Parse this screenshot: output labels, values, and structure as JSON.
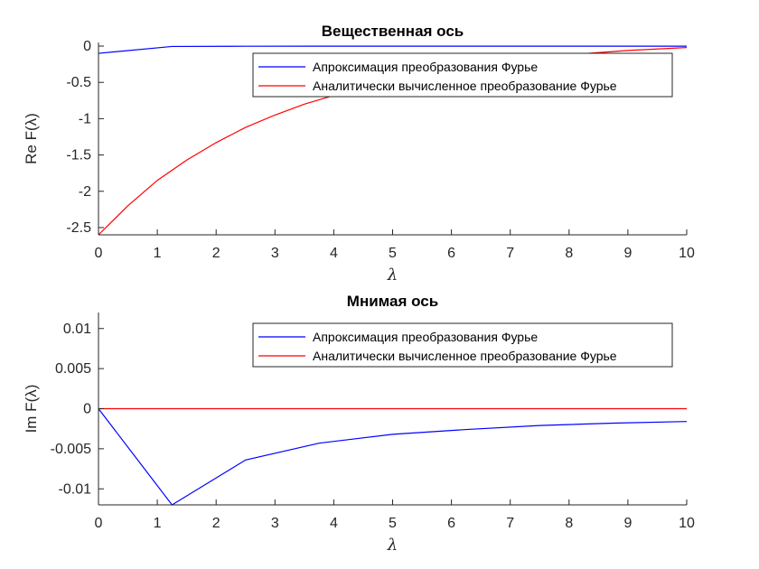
{
  "chart_data": [
    {
      "type": "line",
      "title": "Вещественная ось",
      "xlabel": "λ",
      "ylabel": "Re F(λ)",
      "xlim": [
        0,
        10
      ],
      "ylim": [
        -2.6,
        0.05
      ],
      "xticks": [
        0,
        1,
        2,
        3,
        4,
        5,
        6,
        7,
        8,
        9,
        10
      ],
      "xtick_labels": [
        "0",
        "1",
        "2",
        "3",
        "4",
        "5",
        "6",
        "7",
        "8",
        "9",
        "10"
      ],
      "yticks": [
        0,
        -0.5,
        -1,
        -1.5,
        -2,
        -2.5
      ],
      "ytick_labels": [
        "0",
        "-0.5",
        "-1",
        "-1.5",
        "-2",
        "-2.5"
      ],
      "grid": false,
      "legend_position": "top-right",
      "series": [
        {
          "name": "Апроксимация преобразования Фурье",
          "color": "#0000ff",
          "x": [
            0,
            1.25,
            2.5,
            3.75,
            5,
            6.25,
            7.5,
            8.75,
            10
          ],
          "y": [
            -0.1,
            -0.005,
            -0.002,
            -0.001,
            -0.001,
            -0.001,
            -0.001,
            -0.001,
            -0.001
          ]
        },
        {
          "name": "Аналитически вычисленное преобразование Фурье",
          "color": "#ff0000",
          "x": [
            0,
            0.5,
            1,
            1.5,
            2,
            2.5,
            3,
            3.5,
            4,
            4.5,
            5,
            5.5,
            6,
            6.5,
            7,
            7.5,
            8,
            8.5,
            9,
            9.5,
            10
          ],
          "y": [
            -2.6,
            -2.2,
            -1.85,
            -1.57,
            -1.33,
            -1.12,
            -0.95,
            -0.8,
            -0.68,
            -0.58,
            -0.5,
            -0.42,
            -0.35,
            -0.28,
            -0.22,
            -0.17,
            -0.12,
            -0.09,
            -0.06,
            -0.04,
            -0.02
          ]
        }
      ]
    },
    {
      "type": "line",
      "title": "Мнимая ось",
      "xlabel": "λ",
      "ylabel": "Im F(λ)",
      "xlim": [
        0,
        10
      ],
      "ylim": [
        -0.012,
        0.012
      ],
      "xticks": [
        0,
        1,
        2,
        3,
        4,
        5,
        6,
        7,
        8,
        9,
        10
      ],
      "xtick_labels": [
        "0",
        "1",
        "2",
        "3",
        "4",
        "5",
        "6",
        "7",
        "8",
        "9",
        "10"
      ],
      "yticks": [
        0.01,
        0.005,
        0,
        -0.005,
        -0.01
      ],
      "ytick_labels": [
        "0.01",
        "0.005",
        "0",
        "-0.005",
        "-0.01"
      ],
      "grid": false,
      "legend_position": "top-right",
      "series": [
        {
          "name": "Апроксимация преобразования Фурье",
          "color": "#0000ff",
          "x": [
            0,
            1.25,
            2.5,
            3.75,
            5,
            6.25,
            7.5,
            8.75,
            10
          ],
          "y": [
            0,
            -0.012,
            -0.0064,
            -0.0043,
            -0.0032,
            -0.0026,
            -0.0021,
            -0.0018,
            -0.0016
          ]
        },
        {
          "name": "Аналитически вычисленное преобразование Фурье",
          "color": "#ff0000",
          "x": [
            0,
            10
          ],
          "y": [
            0,
            0
          ]
        }
      ]
    }
  ]
}
